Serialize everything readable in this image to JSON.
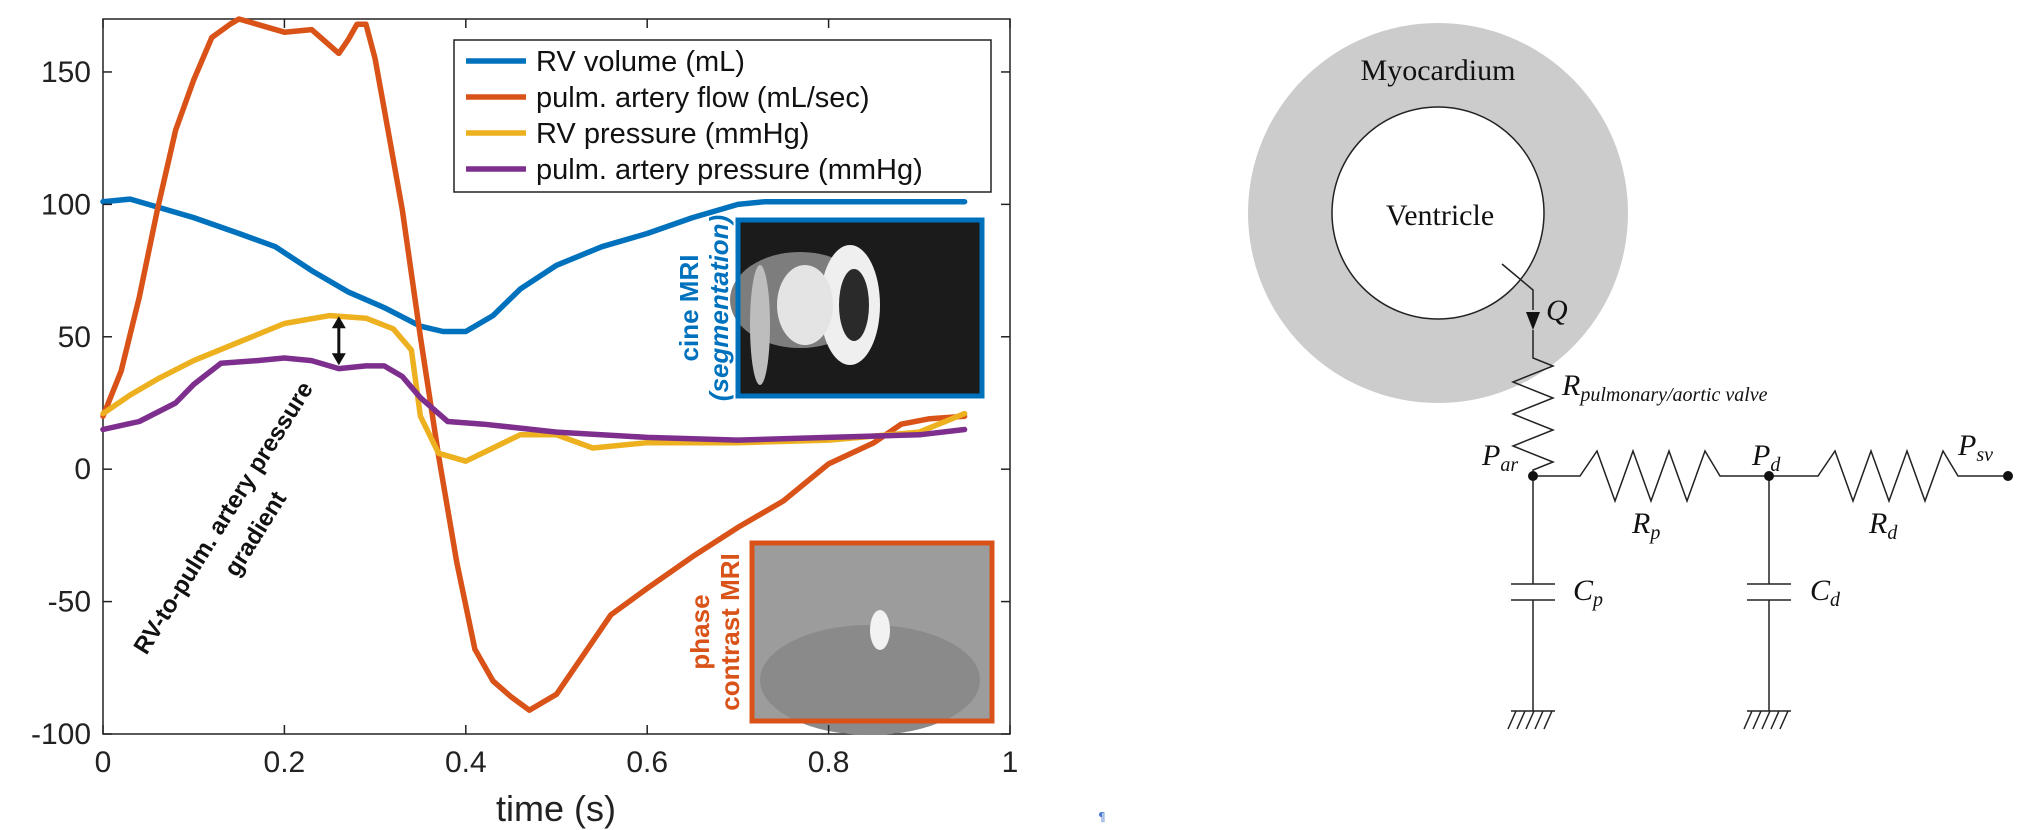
{
  "chart_data": {
    "type": "line",
    "xlabel": "time (s)",
    "ylabel": "",
    "xlim": [
      0,
      1
    ],
    "ylim": [
      -100,
      170
    ],
    "x_ticks": [
      0,
      0.2,
      0.4,
      0.6,
      0.8,
      1
    ],
    "x_tick_labels": [
      "0",
      "0.2",
      "0.4",
      "0.6",
      "0.8",
      "1"
    ],
    "y_ticks": [
      -100,
      -50,
      0,
      50,
      100,
      150
    ],
    "y_tick_labels": [
      "-100",
      "-50",
      "0",
      "50",
      "100",
      "150"
    ],
    "grid": false,
    "legend_position": "top-right",
    "series": [
      {
        "name": "RV volume (mL)",
        "color": "#0072BD",
        "x": [
          0,
          0.03,
          0.06,
          0.1,
          0.15,
          0.19,
          0.23,
          0.27,
          0.31,
          0.35,
          0.375,
          0.4,
          0.43,
          0.46,
          0.5,
          0.55,
          0.6,
          0.65,
          0.7,
          0.73,
          0.8,
          0.95
        ],
        "y": [
          101,
          102,
          99,
          95,
          89,
          84,
          75,
          67,
          61,
          54,
          52,
          52,
          58,
          68,
          77,
          84,
          89,
          95,
          100,
          101,
          101,
          101
        ]
      },
      {
        "name": "pulm. artery flow (mL/sec)",
        "color": "#D95319",
        "x": [
          0,
          0.02,
          0.04,
          0.06,
          0.08,
          0.1,
          0.12,
          0.14,
          0.15,
          0.17,
          0.2,
          0.23,
          0.25,
          0.26,
          0.27,
          0.28,
          0.29,
          0.3,
          0.31,
          0.33,
          0.35,
          0.37,
          0.39,
          0.41,
          0.43,
          0.45,
          0.47,
          0.5,
          0.53,
          0.56,
          0.6,
          0.65,
          0.7,
          0.75,
          0.8,
          0.85,
          0.88,
          0.91,
          0.95
        ],
        "y": [
          20,
          37,
          65,
          98,
          128,
          147,
          163,
          168,
          170,
          168,
          165,
          166,
          160,
          157,
          162,
          168,
          168,
          155,
          136,
          98,
          50,
          5,
          -35,
          -68,
          -80,
          -86,
          -91,
          -85,
          -70,
          -55,
          -45,
          -33,
          -22,
          -12,
          2,
          10,
          17,
          19,
          20
        ]
      },
      {
        "name": "RV pressure (mmHg)",
        "color": "#EDB120",
        "x": [
          0,
          0.03,
          0.06,
          0.1,
          0.15,
          0.2,
          0.25,
          0.29,
          0.32,
          0.34,
          0.35,
          0.37,
          0.4,
          0.43,
          0.46,
          0.5,
          0.54,
          0.6,
          0.7,
          0.8,
          0.9,
          0.95
        ],
        "y": [
          21,
          28,
          34,
          41,
          48,
          55,
          58,
          57,
          53,
          45,
          20,
          6,
          3,
          8,
          13,
          13,
          8,
          10,
          10,
          11,
          14,
          21
        ]
      },
      {
        "name": "pulm. artery pressure (mmHg)",
        "color": "#7E2F8E",
        "x": [
          0,
          0.04,
          0.08,
          0.1,
          0.13,
          0.17,
          0.2,
          0.23,
          0.26,
          0.29,
          0.31,
          0.33,
          0.35,
          0.38,
          0.42,
          0.5,
          0.6,
          0.7,
          0.8,
          0.9,
          0.95
        ],
        "y": [
          15,
          18,
          25,
          32,
          40,
          41,
          42,
          41,
          38,
          39,
          39,
          35,
          27,
          18,
          17,
          14,
          12,
          11,
          12,
          13,
          15
        ]
      }
    ],
    "annotations": [
      {
        "id": "gradient",
        "text": "RV-to-pulm. artery pressure gradient",
        "line1": "RV-to-pulm. artery pressure",
        "line2": "gradient",
        "arrow_x": 0.26,
        "arrow_from": 40,
        "arrow_to": 57
      }
    ],
    "insets": [
      {
        "id": "cine",
        "label_line1": "cine MRI",
        "label_line2": "(segmentation)",
        "color": "#0072BD"
      },
      {
        "id": "phase",
        "label_line1": "phase",
        "label_line2": "contrast MRI",
        "color": "#D95319"
      }
    ]
  },
  "diagram": {
    "outer_label": "Myocardium",
    "inner_label": "Ventricle",
    "flow_label": "Q",
    "valve_resistor": {
      "base": "R",
      "sub": "pulmonary/aortic valve"
    },
    "nodes": [
      {
        "base": "P",
        "sub": "ar"
      },
      {
        "base": "P",
        "sub": "d"
      },
      {
        "base": "P",
        "sub": "sv"
      }
    ],
    "resistors": [
      {
        "base": "R",
        "sub": "p"
      },
      {
        "base": "R",
        "sub": "d"
      }
    ],
    "capacitors": [
      {
        "base": "C",
        "sub": "p"
      },
      {
        "base": "C",
        "sub": "d"
      }
    ],
    "colors": {
      "myocardium": "#cccccc",
      "wire": "#222222"
    }
  },
  "footer": {
    "mark": "¶"
  }
}
